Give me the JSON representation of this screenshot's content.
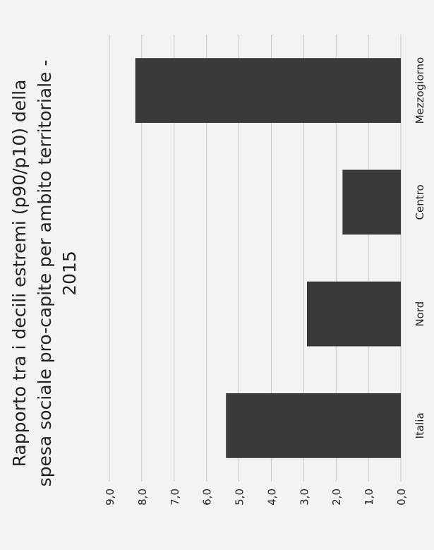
{
  "chart_data": {
    "type": "bar",
    "orientation": "vertical, page rotated 90° counter-clockwise",
    "title_lines": [
      "Rapporto tra i decili estremi (p90/p10) della",
      "spesa sociale pro-capite per ambito territoriale -",
      "2015"
    ],
    "categories": [
      "Italia",
      "Nord",
      "Centro",
      "Mezzogiorno"
    ],
    "values": [
      5.4,
      2.9,
      1.8,
      8.2
    ],
    "ylim": [
      0,
      9
    ],
    "yticks": [
      "0,0",
      "1,0",
      "2,0",
      "3,0",
      "4,0",
      "5,0",
      "6,0",
      "7,0",
      "8,0",
      "9,0"
    ],
    "xlabel": "",
    "ylabel": "",
    "grid": true,
    "bar_color": "#3a3a3a",
    "grid_color": "#c8c8c8"
  }
}
